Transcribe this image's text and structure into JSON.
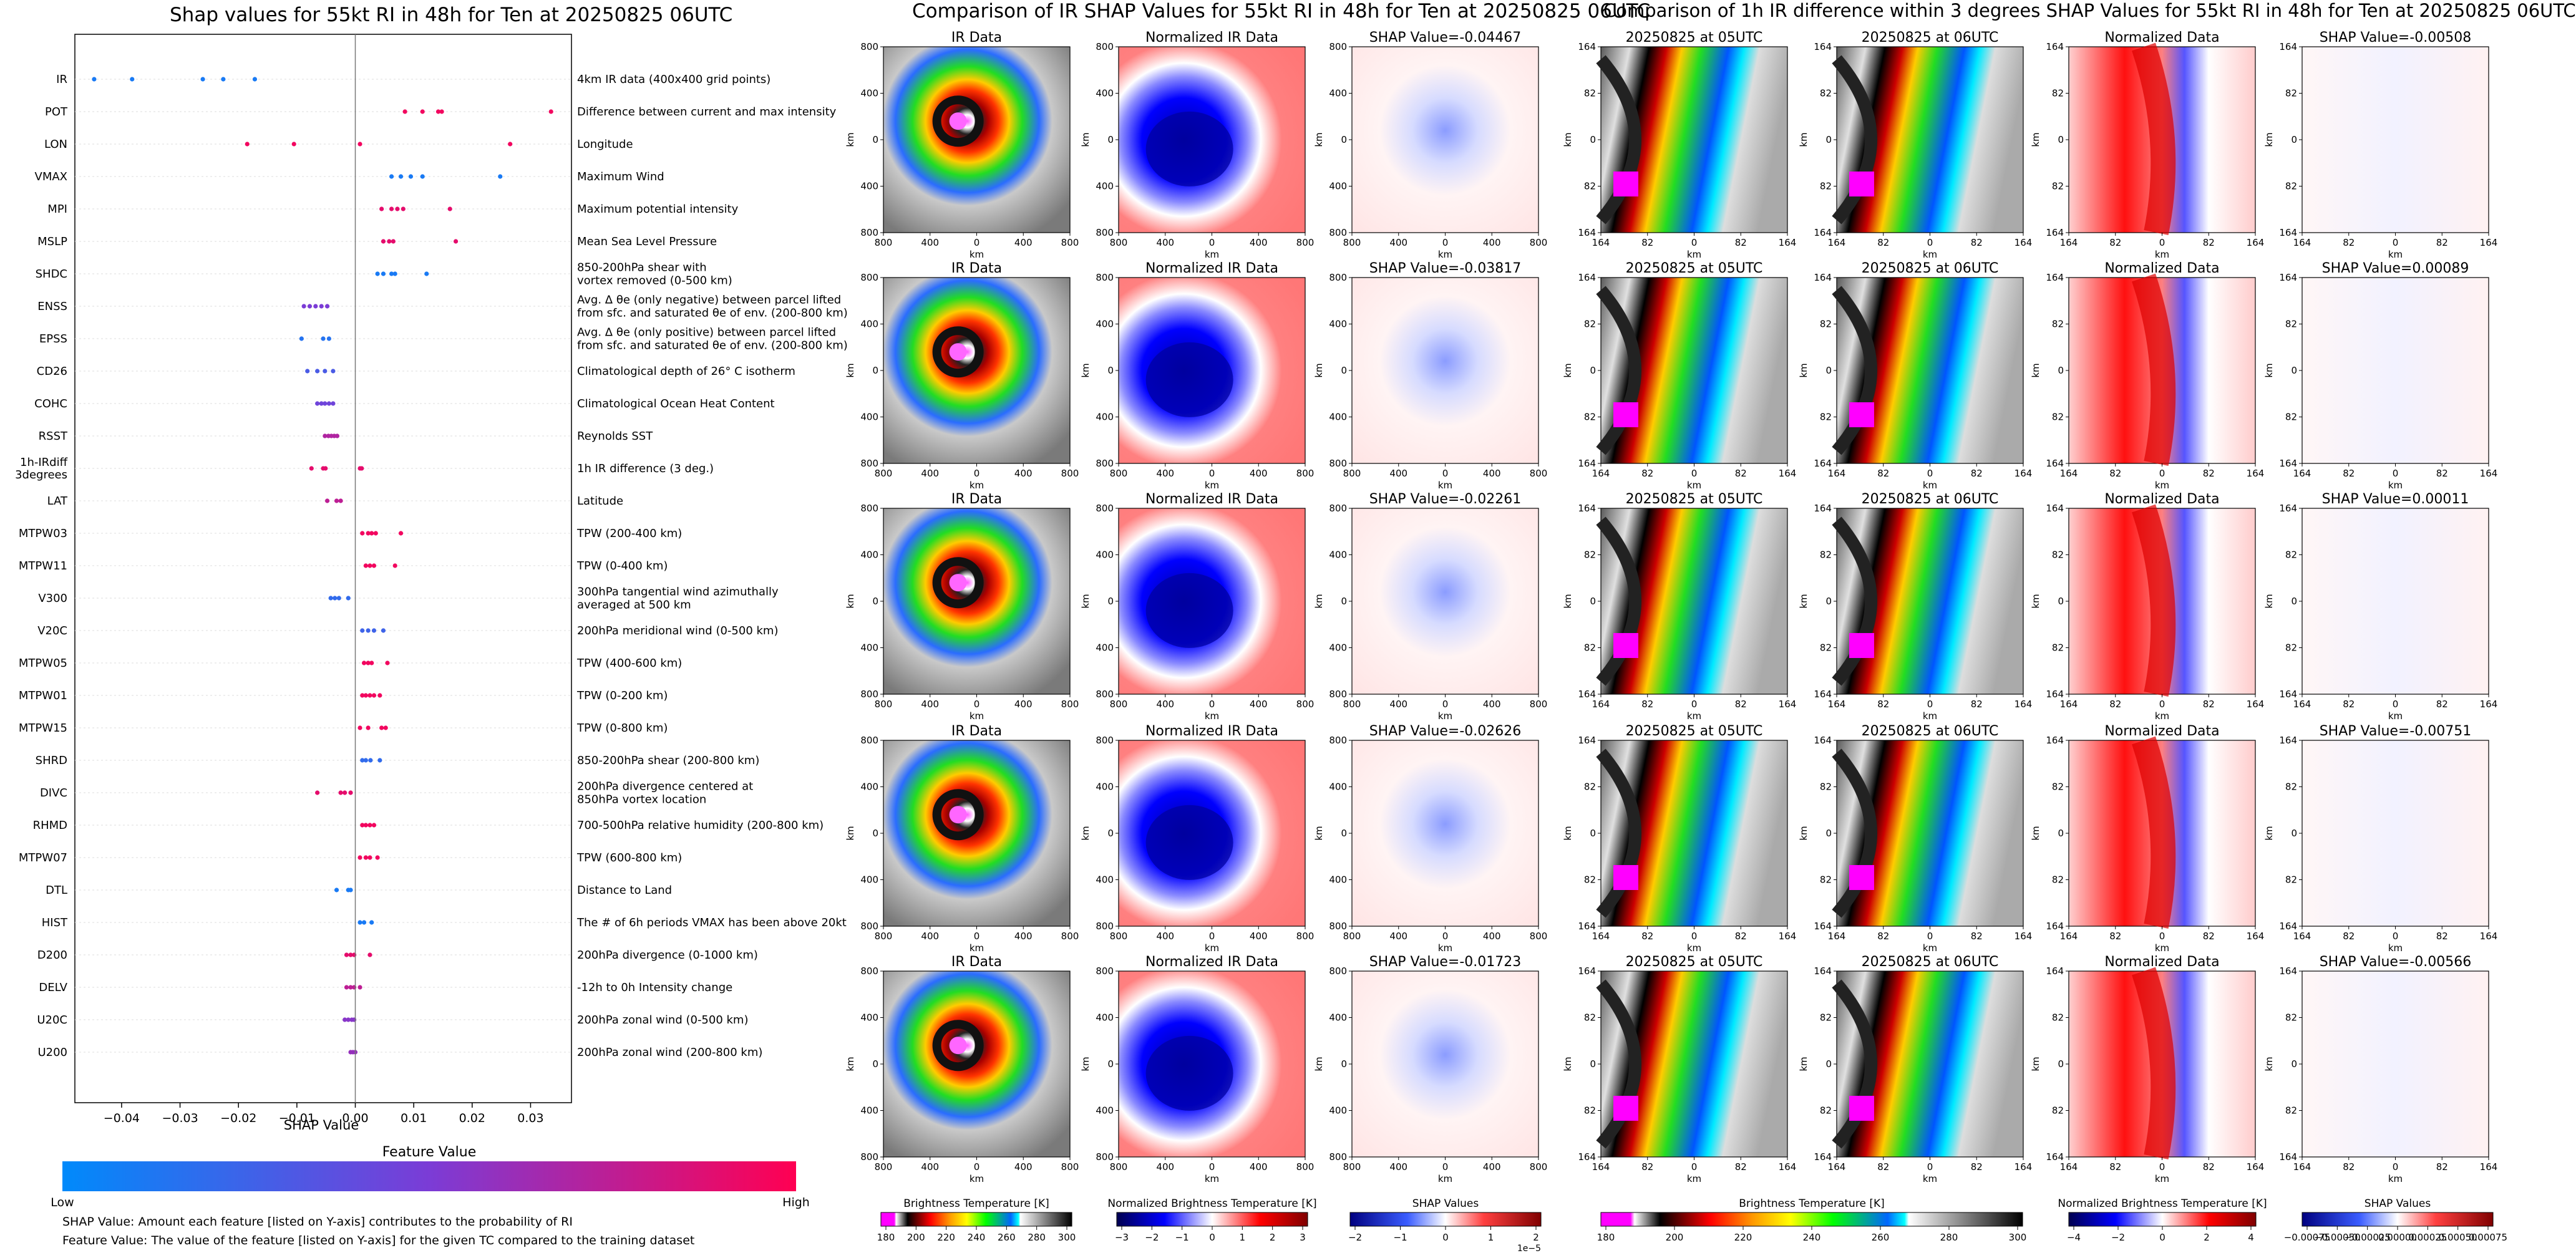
{
  "left": {
    "title": "Shap values for 55kt RI in 48h for Ten at 20250825 06UTC",
    "xlabel": "SHAP Value",
    "colorbar_title": "Feature Value",
    "colorbar_low": "Low",
    "colorbar_high": "High",
    "notes": [
      "SHAP Value: Amount each feature [listed on Y-axis] contributes to the probability of RI",
      "Feature Value: The value of the feature [listed on Y-axis] for the given TC compared to the training dataset"
    ]
  },
  "mid": {
    "title": "Comparison of IR SHAP Values for 55kt RI in 48h for Ten at 20250825 06UTC",
    "col_titles": [
      "IR Data",
      "Normalized IR Data"
    ],
    "shap_titles": [
      "SHAP Value=-0.04467",
      "SHAP Value=-0.03817",
      "SHAP Value=-0.02261",
      "SHAP Value=-0.02626",
      "SHAP Value=-0.01723"
    ],
    "xticks": [
      "800",
      "400",
      "0",
      "400",
      "800"
    ],
    "yticks": [
      "800",
      "400",
      "0",
      "400",
      "800"
    ],
    "axis_label": "km",
    "colorbars": [
      {
        "label": "Brightness Temperature [K]",
        "ticks": [
          "180",
          "200",
          "220",
          "240",
          "260",
          "280",
          "300"
        ]
      },
      {
        "label": "Normalized Brightness Temperature [K]",
        "ticks": [
          "−3",
          "−2",
          "−1",
          "0",
          "1",
          "2",
          "3"
        ]
      },
      {
        "label": "SHAP Values",
        "ticks": [
          "−2",
          "−1",
          "0",
          "1",
          "2"
        ],
        "offset": "1e−5"
      }
    ]
  },
  "right": {
    "title": "Comparison of 1h IR difference within 3 degrees SHAP Values for 55kt RI in 48h for Ten at 20250825 06UTC",
    "col_titles": [
      "20250825 at 05UTC",
      "20250825 at 06UTC",
      "Normalized Data"
    ],
    "shap_titles": [
      "SHAP Value=-0.00508",
      "SHAP Value=0.00089",
      "SHAP Value=0.00011",
      "SHAP Value=-0.00751",
      "SHAP Value=-0.00566"
    ],
    "xticks": [
      "164",
      "82",
      "0",
      "82",
      "164"
    ],
    "yticks": [
      "164",
      "82",
      "0",
      "82",
      "164"
    ],
    "axis_label": "km",
    "colorbars": [
      {
        "label": "Brightness Temperature [K]",
        "ticks": [
          "180",
          "200",
          "220",
          "240",
          "260",
          "280",
          "300"
        ]
      },
      {
        "label": "Normalized Brightness Temperature [K]",
        "ticks": [
          "−4",
          "−2",
          "0",
          "2",
          "4"
        ]
      },
      {
        "label": "SHAP Values",
        "ticks": [
          "−0.00075",
          "−0.00050",
          "−0.00025",
          "0.00000",
          "0.00025",
          "0.00050",
          "0.00075"
        ]
      }
    ]
  },
  "chart_data": [
    {
      "type": "scatter",
      "title": "Shap values for 55kt RI in 48h for Ten at 20250825 06UTC",
      "xlabel": "SHAP Value",
      "xlim": [
        -0.048,
        0.037
      ],
      "xticks": [
        -0.04,
        -0.03,
        -0.02,
        -0.01,
        0.0,
        0.01,
        0.02,
        0.03
      ],
      "grid": false,
      "features": [
        {
          "name": "IR",
          "desc": "4km IR data (400x400 grid points)",
          "values": [
            -0.0447,
            -0.0382,
            -0.0261,
            -0.0226,
            -0.0172
          ],
          "feature_values": [
            0.1,
            0.1,
            0.1,
            0.1,
            0.1
          ]
        },
        {
          "name": "POT",
          "desc": "Difference between current and max intensity",
          "values": [
            0.0085,
            0.0115,
            0.0142,
            0.0148,
            0.0335
          ],
          "feature_values": [
            0.95,
            0.95,
            0.95,
            0.95,
            0.95
          ]
        },
        {
          "name": "LON",
          "desc": "Longitude",
          "values": [
            -0.0185,
            -0.0105,
            0.0008,
            0.0265
          ],
          "feature_values": [
            0.95,
            0.95,
            0.95,
            0.95
          ]
        },
        {
          "name": "VMAX",
          "desc": "Maximum Wind",
          "values": [
            0.0062,
            0.0078,
            0.0095,
            0.0115,
            0.0248
          ],
          "feature_values": [
            0.1,
            0.1,
            0.1,
            0.1,
            0.1
          ]
        },
        {
          "name": "MPI",
          "desc": "Maximum potential intensity",
          "values": [
            0.0045,
            0.0062,
            0.0072,
            0.0082,
            0.0162
          ],
          "feature_values": [
            0.9,
            0.9,
            0.9,
            0.9,
            0.9
          ]
        },
        {
          "name": "MSLP",
          "desc": "Mean Sea Level Pressure",
          "values": [
            0.0048,
            0.0058,
            0.0065,
            0.0172
          ],
          "feature_values": [
            0.9,
            0.9,
            0.9,
            0.9
          ]
        },
        {
          "name": "SHDC",
          "desc": "850-200hPa shear with|vortex removed (0-500 km)",
          "values": [
            0.0038,
            0.0048,
            0.0062,
            0.0068,
            0.0122
          ],
          "feature_values": [
            0.1,
            0.1,
            0.1,
            0.1,
            0.1
          ]
        },
        {
          "name": "ENSS",
          "desc": "Avg. Δ θe (only negative) between parcel lifted|from sfc. and saturated θe of env. (200-800 km)",
          "values": [
            -0.0088,
            -0.0078,
            -0.0068,
            -0.0058,
            -0.0048
          ],
          "feature_values": [
            0.5,
            0.5,
            0.5,
            0.5,
            0.5
          ]
        },
        {
          "name": "EPSS",
          "desc": "Avg. Δ θe (only positive) between parcel lifted|from sfc. and saturated θe of env. (200-800 km)",
          "values": [
            -0.0092,
            -0.0055,
            -0.0045
          ],
          "feature_values": [
            0.15,
            0.15,
            0.15
          ]
        },
        {
          "name": "CD26",
          "desc": "Climatological depth of 26° C isotherm",
          "values": [
            -0.0082,
            -0.0065,
            -0.0052,
            -0.0038
          ],
          "feature_values": [
            0.3,
            0.3,
            0.3,
            0.3
          ]
        },
        {
          "name": "COHC",
          "desc": "Climatological Ocean Heat Content",
          "values": [
            -0.0065,
            -0.0058,
            -0.0052,
            -0.0045,
            -0.0038
          ],
          "feature_values": [
            0.45,
            0.45,
            0.45,
            0.45,
            0.45
          ]
        },
        {
          "name": "RSST",
          "desc": "Reynolds SST",
          "values": [
            -0.0052,
            -0.0046,
            -0.0041,
            -0.0036,
            -0.0031
          ],
          "feature_values": [
            0.7,
            0.7,
            0.7,
            0.7,
            0.7
          ]
        },
        {
          "name": "1h-IRdiff|3degrees",
          "desc": "1h IR difference (3 deg.)",
          "values": [
            -0.0075,
            -0.0055,
            -0.0051,
            0.0008,
            0.0011
          ],
          "feature_values": [
            0.9,
            0.9,
            0.9,
            0.9,
            0.9
          ]
        },
        {
          "name": "LAT",
          "desc": "Latitude",
          "values": [
            -0.0048,
            -0.0032,
            -0.0025
          ],
          "feature_values": [
            0.75,
            0.75,
            0.75
          ]
        },
        {
          "name": "MTPW03",
          "desc": "TPW (200-400 km)",
          "values": [
            0.0012,
            0.0022,
            0.0028,
            0.0035,
            0.0078
          ],
          "feature_values": [
            0.95,
            0.95,
            0.95,
            0.95,
            0.95
          ]
        },
        {
          "name": "MTPW11",
          "desc": "TPW (0-400 km)",
          "values": [
            0.0018,
            0.0025,
            0.0032,
            0.0068
          ],
          "feature_values": [
            0.95,
            0.95,
            0.95,
            0.95
          ]
        },
        {
          "name": "V300",
          "desc": "300hPa tangential wind azimuthally|averaged at 500 km",
          "values": [
            -0.0042,
            -0.0035,
            -0.0028,
            -0.0012
          ],
          "feature_values": [
            0.2,
            0.2,
            0.2,
            0.2
          ]
        },
        {
          "name": "V20C",
          "desc": "200hPa meridional wind (0-500 km)",
          "values": [
            0.0012,
            0.0022,
            0.0032,
            0.0048
          ],
          "feature_values": [
            0.25,
            0.25,
            0.25,
            0.25
          ]
        },
        {
          "name": "MTPW05",
          "desc": "TPW (400-600 km)",
          "values": [
            0.0015,
            0.0022,
            0.0028,
            0.0055
          ],
          "feature_values": [
            0.95,
            0.95,
            0.95,
            0.95
          ]
        },
        {
          "name": "MTPW01",
          "desc": "TPW (0-200 km)",
          "values": [
            0.0012,
            0.0018,
            0.0025,
            0.0032,
            0.0042
          ],
          "feature_values": [
            0.95,
            0.95,
            0.95,
            0.95,
            0.95
          ]
        },
        {
          "name": "MTPW15",
          "desc": "TPW (0-800 km)",
          "values": [
            0.0008,
            0.0022,
            0.0045,
            0.0052
          ],
          "feature_values": [
            0.95,
            0.95,
            0.95,
            0.95
          ]
        },
        {
          "name": "SHRD",
          "desc": "850-200hPa shear (200-800 km)",
          "values": [
            0.0012,
            0.0018,
            0.0026,
            0.0042
          ],
          "feature_values": [
            0.2,
            0.2,
            0.2,
            0.2
          ]
        },
        {
          "name": "DIVC",
          "desc": "200hPa divergence centered at|850hPa vortex location",
          "values": [
            -0.0065,
            -0.0025,
            -0.0018,
            -0.0008
          ],
          "feature_values": [
            0.9,
            0.9,
            0.9,
            0.9
          ]
        },
        {
          "name": "RHMD",
          "desc": "700-500hPa relative humidity (200-800 km)",
          "values": [
            0.0012,
            0.0018,
            0.0025,
            0.0032
          ],
          "feature_values": [
            0.95,
            0.95,
            0.95,
            0.95
          ]
        },
        {
          "name": "MTPW07",
          "desc": "TPW (600-800 km)",
          "values": [
            0.0008,
            0.0018,
            0.0025,
            0.0038
          ],
          "feature_values": [
            0.95,
            0.95,
            0.95,
            0.95
          ]
        },
        {
          "name": "DTL",
          "desc": "Distance to Land",
          "values": [
            -0.0032,
            -0.0012,
            -0.0008
          ],
          "feature_values": [
            0.1,
            0.1,
            0.1
          ]
        },
        {
          "name": "HIST",
          "desc": "The # of 6h periods VMAX has been above 20kt",
          "values": [
            0.0008,
            0.0015,
            0.0028
          ],
          "feature_values": [
            0.1,
            0.1,
            0.1
          ]
        },
        {
          "name": "D200",
          "desc": "200hPa divergence (0-1000 km)",
          "values": [
            -0.0015,
            -0.0008,
            -0.0002,
            0.0025
          ],
          "feature_values": [
            0.9,
            0.9,
            0.9,
            0.9
          ]
        },
        {
          "name": "DELV",
          "desc": "-12h to 0h Intensity change",
          "values": [
            -0.0015,
            -0.0008,
            -0.0002,
            0.0008
          ],
          "feature_values": [
            0.75,
            0.75,
            0.75,
            0.75
          ]
        },
        {
          "name": "U20C",
          "desc": "200hPa zonal wind (0-500 km)",
          "values": [
            -0.0018,
            -0.0012,
            -0.0006,
            -0.0002
          ],
          "feature_values": [
            0.55,
            0.55,
            0.55,
            0.55
          ]
        },
        {
          "name": "U200",
          "desc": "200hPa zonal wind (200-800 km)",
          "values": [
            -0.0008,
            -0.0004,
            0.0
          ],
          "feature_values": [
            0.6,
            0.6,
            0.6
          ]
        }
      ]
    }
  ]
}
